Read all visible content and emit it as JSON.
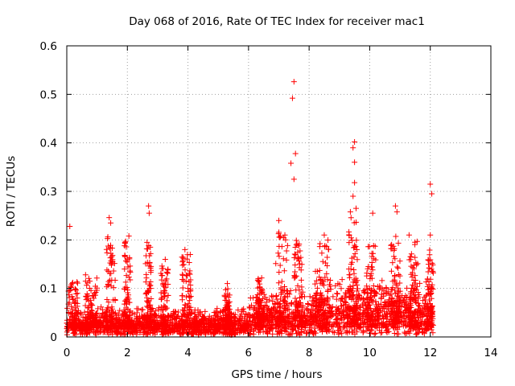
{
  "chart_data": {
    "type": "scatter",
    "title": "Day 068 of 2016, Rate Of TEC Index for receiver mac1",
    "xlabel": "GPS time / hours",
    "ylabel": "ROTI / TECUs",
    "xlim": [
      0,
      14
    ],
    "ylim": [
      0,
      0.6
    ],
    "xticks": [
      0,
      2,
      4,
      6,
      8,
      10,
      12,
      14
    ],
    "yticks": [
      0,
      0.1,
      0.2,
      0.3,
      0.4,
      0.5,
      0.6
    ],
    "xtick_labels": [
      "0",
      "2",
      "4",
      "6",
      "8",
      "10",
      "12",
      "14"
    ],
    "ytick_labels": [
      "0",
      "0.1",
      "0.2",
      "0.3",
      "0.4",
      "0.5",
      "0.6"
    ],
    "grid": true,
    "marker": "+",
    "series": [
      {
        "name": "ROTI",
        "color": "#ff0000",
        "x_range_observed": [
          0.0,
          12.1
        ],
        "notes": "dense band of points between 0.01 and 0.10 TECU/min across 0-12 h, with scattered spikes",
        "highlight_points": [
          {
            "x": 0.1,
            "y": 0.228
          },
          {
            "x": 1.4,
            "y": 0.246
          },
          {
            "x": 1.45,
            "y": 0.235
          },
          {
            "x": 2.05,
            "y": 0.208
          },
          {
            "x": 2.7,
            "y": 0.27
          },
          {
            "x": 2.72,
            "y": 0.255
          },
          {
            "x": 2.65,
            "y": 0.195
          },
          {
            "x": 3.25,
            "y": 0.16
          },
          {
            "x": 3.9,
            "y": 0.18
          },
          {
            "x": 4.0,
            "y": 0.1
          },
          {
            "x": 5.3,
            "y": 0.11
          },
          {
            "x": 7.0,
            "y": 0.24
          },
          {
            "x": 7.2,
            "y": 0.21
          },
          {
            "x": 7.5,
            "y": 0.526
          },
          {
            "x": 7.45,
            "y": 0.492
          },
          {
            "x": 7.55,
            "y": 0.378
          },
          {
            "x": 7.4,
            "y": 0.358
          },
          {
            "x": 7.5,
            "y": 0.325
          },
          {
            "x": 8.5,
            "y": 0.21
          },
          {
            "x": 9.5,
            "y": 0.402
          },
          {
            "x": 9.45,
            "y": 0.39
          },
          {
            "x": 9.5,
            "y": 0.36
          },
          {
            "x": 9.5,
            "y": 0.318
          },
          {
            "x": 9.45,
            "y": 0.29
          },
          {
            "x": 9.55,
            "y": 0.265
          },
          {
            "x": 10.1,
            "y": 0.255
          },
          {
            "x": 10.85,
            "y": 0.27
          },
          {
            "x": 10.9,
            "y": 0.258
          },
          {
            "x": 11.3,
            "y": 0.21
          },
          {
            "x": 12.0,
            "y": 0.315
          },
          {
            "x": 12.05,
            "y": 0.295
          },
          {
            "x": 12.0,
            "y": 0.21
          }
        ],
        "spike_regions": [
          {
            "x_start": 0.05,
            "x_end": 0.4,
            "y_top": 0.12
          },
          {
            "x_start": 0.6,
            "x_end": 1.0,
            "y_top": 0.13
          },
          {
            "x_start": 1.3,
            "x_end": 1.6,
            "y_top": 0.21
          },
          {
            "x_start": 1.9,
            "x_end": 2.1,
            "y_top": 0.2
          },
          {
            "x_start": 2.6,
            "x_end": 2.8,
            "y_top": 0.19
          },
          {
            "x_start": 3.1,
            "x_end": 3.35,
            "y_top": 0.15
          },
          {
            "x_start": 3.8,
            "x_end": 4.1,
            "y_top": 0.17
          },
          {
            "x_start": 5.2,
            "x_end": 5.4,
            "y_top": 0.1
          },
          {
            "x_start": 6.3,
            "x_end": 6.5,
            "y_top": 0.13
          },
          {
            "x_start": 6.9,
            "x_end": 7.3,
            "y_top": 0.22
          },
          {
            "x_start": 7.5,
            "x_end": 7.8,
            "y_top": 0.2
          },
          {
            "x_start": 8.2,
            "x_end": 8.7,
            "y_top": 0.2
          },
          {
            "x_start": 9.3,
            "x_end": 9.6,
            "y_top": 0.26
          },
          {
            "x_start": 9.9,
            "x_end": 10.2,
            "y_top": 0.19
          },
          {
            "x_start": 10.7,
            "x_end": 11.0,
            "y_top": 0.22
          },
          {
            "x_start": 11.3,
            "x_end": 11.6,
            "y_top": 0.2
          },
          {
            "x_start": 11.9,
            "x_end": 12.1,
            "y_top": 0.18
          }
        ]
      }
    ]
  }
}
